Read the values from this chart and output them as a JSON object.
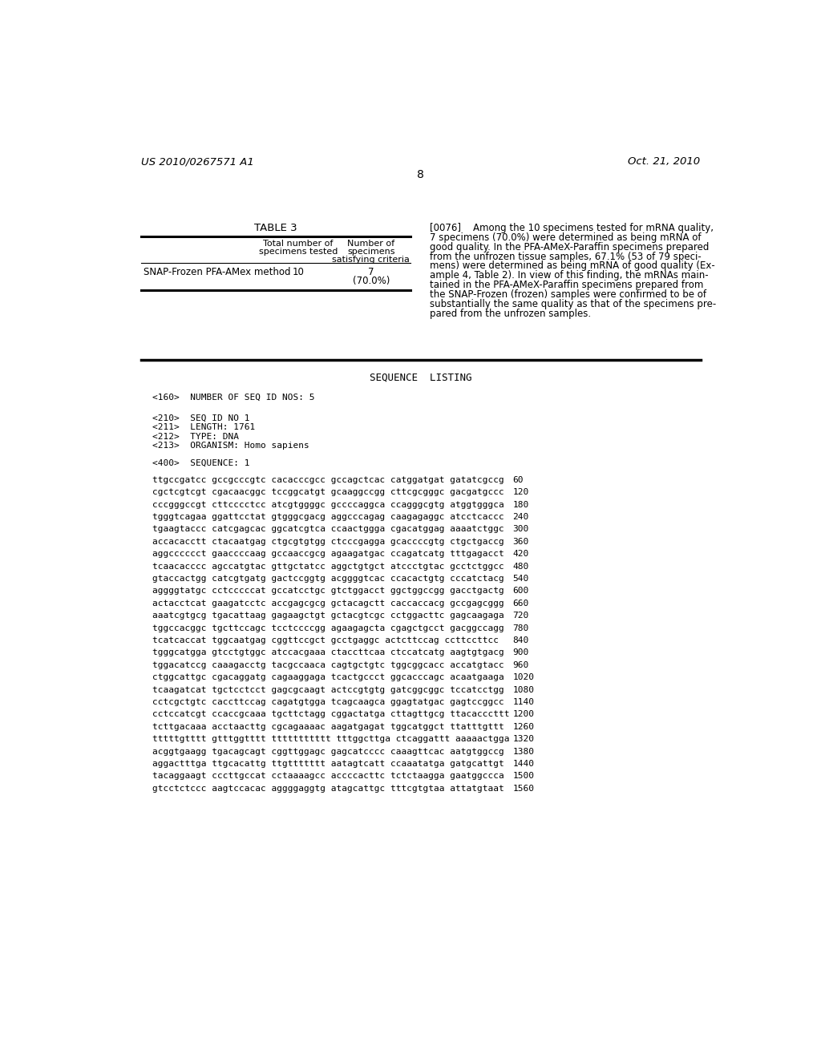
{
  "page_header_left": "US 2010/0267571 A1",
  "page_header_right": "Oct. 21, 2010",
  "page_number": "8",
  "background_color": "#ffffff",
  "text_color": "#000000",
  "table_title": "TABLE 3",
  "table_col1_header_line1": "Total number of",
  "table_col1_header_line2": "specimens tested",
  "table_col2_header_line1": "Number of",
  "table_col2_header_line2": "specimens",
  "table_col2_header_line3": "satisfying criteria",
  "table_row1_label": "SNAP-Frozen PFA-AMex method",
  "table_row1_col1": "10",
  "table_row1_col2_line1": "7",
  "table_row1_col2_line2": "(70.0%)",
  "paragraph_ref": "[0076]",
  "paragraph_lines": [
    "[0076]    Among the 10 specimens tested for mRNA quality,",
    "7 specimens (70.0%) were determined as being mRNA of",
    "good quality. In the PFA-AMeX-Paraffin specimens prepared",
    "from the unfrozen tissue samples, 67.1% (53 of 79 speci-",
    "mens) were determined as being mRNA of good quality (Ex-",
    "ample 4, Table 2). In view of this finding, the mRNAs main-",
    "tained in the PFA-AMeX-Paraffin specimens prepared from",
    "the SNAP-Frozen (frozen) samples were confirmed to be of",
    "substantially the same quality as that of the specimens pre-",
    "pared from the unfrozen samples."
  ],
  "seq_listing_title": "SEQUENCE  LISTING",
  "seq_metadata": [
    "<160>  NUMBER OF SEQ ID NOS: 5",
    "",
    "<210>  SEQ ID NO 1",
    "<211>  LENGTH: 1761",
    "<212>  TYPE: DNA",
    "<213>  ORGANISM: Homo sapiens",
    "",
    "<400>  SEQUENCE: 1"
  ],
  "sequence_lines": [
    [
      "ttgccgatcc gccgcccgtc cacacccgcc gccagctcac catggatgat gatatcgccg",
      "60"
    ],
    [
      "cgctcgtcgt cgacaacggc tccggcatgt gcaaggccgg cttcgcgggc gacgatgccc",
      "120"
    ],
    [
      "cccgggccgt cttcccctcc atcgtggggc gccccaggca ccagggcgtg atggtgggca",
      "180"
    ],
    [
      "tgggtcagaa ggattcctat gtgggcgacg aggcccagag caagagaggc atcctcaccc",
      "240"
    ],
    [
      "tgaagtaccc catcgagcac ggcatcgtca ccaactggga cgacatggag aaaatctggc",
      "300"
    ],
    [
      "accacacctt ctacaatgag ctgcgtgtgg ctcccgagga gcaccccgtg ctgctgaccg",
      "360"
    ],
    [
      "aggcccccct gaaccccaag gccaaccgcg agaagatgac ccagatcatg tttgagacct",
      "420"
    ],
    [
      "tcaacacccc agccatgtac gttgctatcc aggctgtgct atccctgtac gcctctggcc",
      "480"
    ],
    [
      "gtaccactgg catcgtgatg gactccggtg acggggtcac ccacactgtg cccatctacg",
      "540"
    ],
    [
      "aggggtatgc cctcccccat gccatcctgc gtctggacct ggctggccgg gacctgactg",
      "600"
    ],
    [
      "actacctcat gaagatcctc accgagcgcg gctacagctt caccaccacg gccgagcggg",
      "660"
    ],
    [
      "aaatcgtgcg tgacattaag gagaagctgt gctacgtcgc cctggacttc gagcaagaga",
      "720"
    ],
    [
      "tggccacggc tgcttccagc tcctccccgg agaagagcta cgagctgcct gacggccagg",
      "780"
    ],
    [
      "tcatcaccat tggcaatgag cggttccgct gcctgaggc actcttccag ccttccttcc",
      "840"
    ],
    [
      "tgggcatgga gtcctgtggc atccacgaaa ctaccttcaa ctccatcatg aagtgtgacg",
      "900"
    ],
    [
      "tggacatccg caaagacctg tacgccaaca cagtgctgtc tggcggcacc accatgtacc",
      "960"
    ],
    [
      "ctggcattgc cgacaggatg cagaaggaga tcactgccct ggcacccagc acaatgaaga",
      "1020"
    ],
    [
      "tcaagatcat tgctcctcct gagcgcaagt actccgtgtg gatcggcggc tccatcctgg",
      "1080"
    ],
    [
      "cctcgctgtc caccttccag cagatgtgga tcagcaagca ggagtatgac gagtccggcc",
      "1140"
    ],
    [
      "cctccatcgt ccaccgcaaa tgcttctagg cggactatga cttagttgcg ttacacccttt",
      "1200"
    ],
    [
      "tcttgacaaa acctaacttg cgcagaaaac aagatgagat tggcatggct ttatttgttt",
      "1260"
    ],
    [
      "tttttgtttt gtttggtttt ttttttttttt tttggcttga ctcaggattt aaaaactgga",
      "1320"
    ],
    [
      "acggtgaagg tgacagcagt cggttggagc gagcatcccc caaagttcac aatgtggccg",
      "1380"
    ],
    [
      "aggactttga ttgcacattg ttgttttttt aatagtcatt ccaaatatga gatgcattgt",
      "1440"
    ],
    [
      "tacaggaagt cccttgccat cctaaaagcc accccacttc tctctaagga gaatggccca",
      "1500"
    ],
    [
      "gtcctctccc aagtccacac aggggaggtg atagcattgc tttcgtgtaa attatgtaat",
      "1560"
    ]
  ]
}
